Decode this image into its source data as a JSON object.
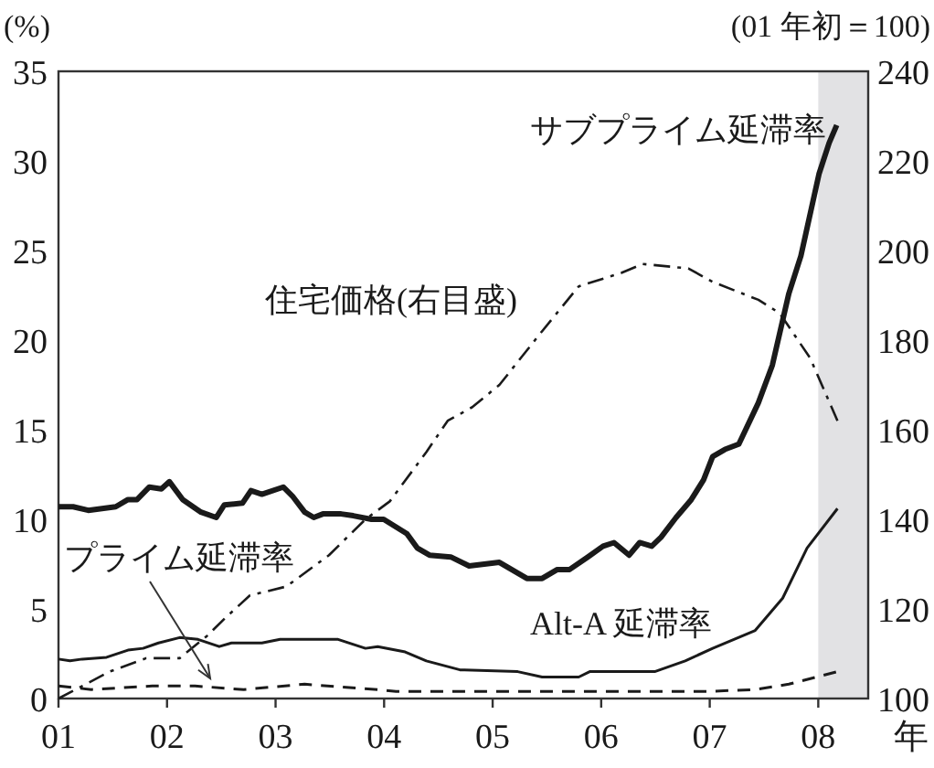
{
  "chart_data": {
    "type": "line",
    "ylabel": "(%)",
    "y2label": "(01 年初＝100)",
    "xlabel": "年",
    "xlim": [
      1,
      8.46
    ],
    "xticks": [
      {
        "value": 1,
        "label": "01"
      },
      {
        "value": 2,
        "label": "02"
      },
      {
        "value": 3,
        "label": "03"
      },
      {
        "value": 4,
        "label": "04"
      },
      {
        "value": 5,
        "label": "05"
      },
      {
        "value": 6,
        "label": "06"
      },
      {
        "value": 7,
        "label": "07"
      },
      {
        "value": 8,
        "label": "08"
      }
    ],
    "ylim": [
      0,
      35
    ],
    "yticks": [
      0,
      5,
      10,
      15,
      20,
      25,
      30,
      35
    ],
    "y2lim": [
      100,
      240
    ],
    "y2ticks": [
      100,
      120,
      140,
      160,
      180,
      200,
      220,
      240
    ],
    "grid": false,
    "marker": "none",
    "bands": [
      {
        "axis": "x",
        "from": 8,
        "to": 8.46,
        "color": "#e2e2e4"
      }
    ],
    "series": [
      {
        "name": "サブプライム延滞率",
        "color": "#1a1a1a",
        "line_style": "solid",
        "x": [
          1.0,
          1.135,
          1.274,
          1.527,
          1.64,
          1.724,
          1.837,
          1.948,
          2.022,
          2.145,
          2.313,
          2.453,
          2.527,
          2.695,
          2.773,
          2.874,
          3.071,
          3.155,
          3.268,
          3.352,
          3.436,
          3.604,
          3.716,
          3.884,
          3.996,
          4.21,
          4.305,
          4.418,
          4.614,
          4.783,
          5.062,
          5.315,
          5.456,
          5.596,
          5.709,
          5.877,
          6.017,
          6.118,
          6.258,
          6.354,
          6.466,
          6.551,
          6.69,
          6.83,
          6.943,
          7.027,
          7.14,
          7.268,
          7.448,
          7.577,
          7.729,
          7.84,
          8.008,
          8.1,
          8.17
        ],
        "values": [
          10.7,
          10.7,
          10.5,
          10.7,
          11.1,
          11.1,
          11.8,
          11.7,
          12.1,
          11.1,
          10.4,
          10.1,
          10.8,
          10.9,
          11.6,
          11.4,
          11.8,
          11.3,
          10.4,
          10.1,
          10.3,
          10.3,
          10.2,
          10.0,
          10.0,
          9.2,
          8.4,
          8.0,
          7.9,
          7.4,
          7.6,
          6.7,
          6.7,
          7.2,
          7.2,
          7.9,
          8.5,
          8.7,
          8.0,
          8.7,
          8.5,
          9.0,
          10.1,
          11.1,
          12.2,
          13.5,
          13.9,
          14.2,
          16.5,
          18.6,
          22.6,
          24.7,
          29.3,
          31.0,
          32.0
        ]
      },
      {
        "name": "住宅価格(右目盛)",
        "color": "#1a1a1a",
        "line_style": "dashdot",
        "axis": "y2",
        "x": [
          1.0,
          1.471,
          1.808,
          2.116,
          2.369,
          2.537,
          2.763,
          3.099,
          3.492,
          3.828,
          4.052,
          4.389,
          4.586,
          4.81,
          5.062,
          5.456,
          5.793,
          6.185,
          6.382,
          6.803,
          7.027,
          7.448,
          7.645,
          7.925,
          8.177
        ],
        "values": [
          100,
          106,
          109,
          109,
          114,
          118,
          123,
          125,
          132,
          140,
          144,
          155,
          162,
          165,
          170,
          182,
          192,
          195,
          197,
          196,
          193,
          189,
          186,
          176,
          162
        ]
      },
      {
        "name": "Alt-A 延滞率",
        "color": "#1a1a1a",
        "line_style": "solid",
        "x": [
          1.0,
          1.106,
          1.219,
          1.443,
          1.64,
          1.779,
          1.921,
          2.116,
          2.285,
          2.481,
          2.594,
          2.874,
          3.042,
          3.576,
          3.828,
          3.941,
          4.194,
          4.389,
          4.699,
          5.231,
          5.456,
          5.793,
          5.894,
          6.493,
          6.774,
          7.027,
          7.419,
          7.672,
          7.897,
          8.177
        ],
        "values": [
          2.2,
          2.1,
          2.2,
          2.3,
          2.7,
          2.8,
          3.1,
          3.4,
          3.3,
          2.9,
          3.1,
          3.1,
          3.3,
          3.3,
          2.8,
          2.9,
          2.6,
          2.1,
          1.6,
          1.5,
          1.2,
          1.2,
          1.5,
          1.5,
          2.1,
          2.8,
          3.8,
          5.6,
          8.4,
          10.6
        ]
      },
      {
        "name": "プライム延滞率",
        "color": "#1a1a1a",
        "line_style": "dashed",
        "x": [
          1.0,
          1.303,
          1.864,
          2.258,
          2.706,
          3.268,
          3.941,
          4.11,
          5.5,
          7.0,
          7.419,
          7.729,
          8.177
        ],
        "values": [
          0.7,
          0.5,
          0.7,
          0.7,
          0.5,
          0.8,
          0.5,
          0.4,
          0.4,
          0.4,
          0.5,
          0.8,
          1.5
        ]
      }
    ]
  }
}
